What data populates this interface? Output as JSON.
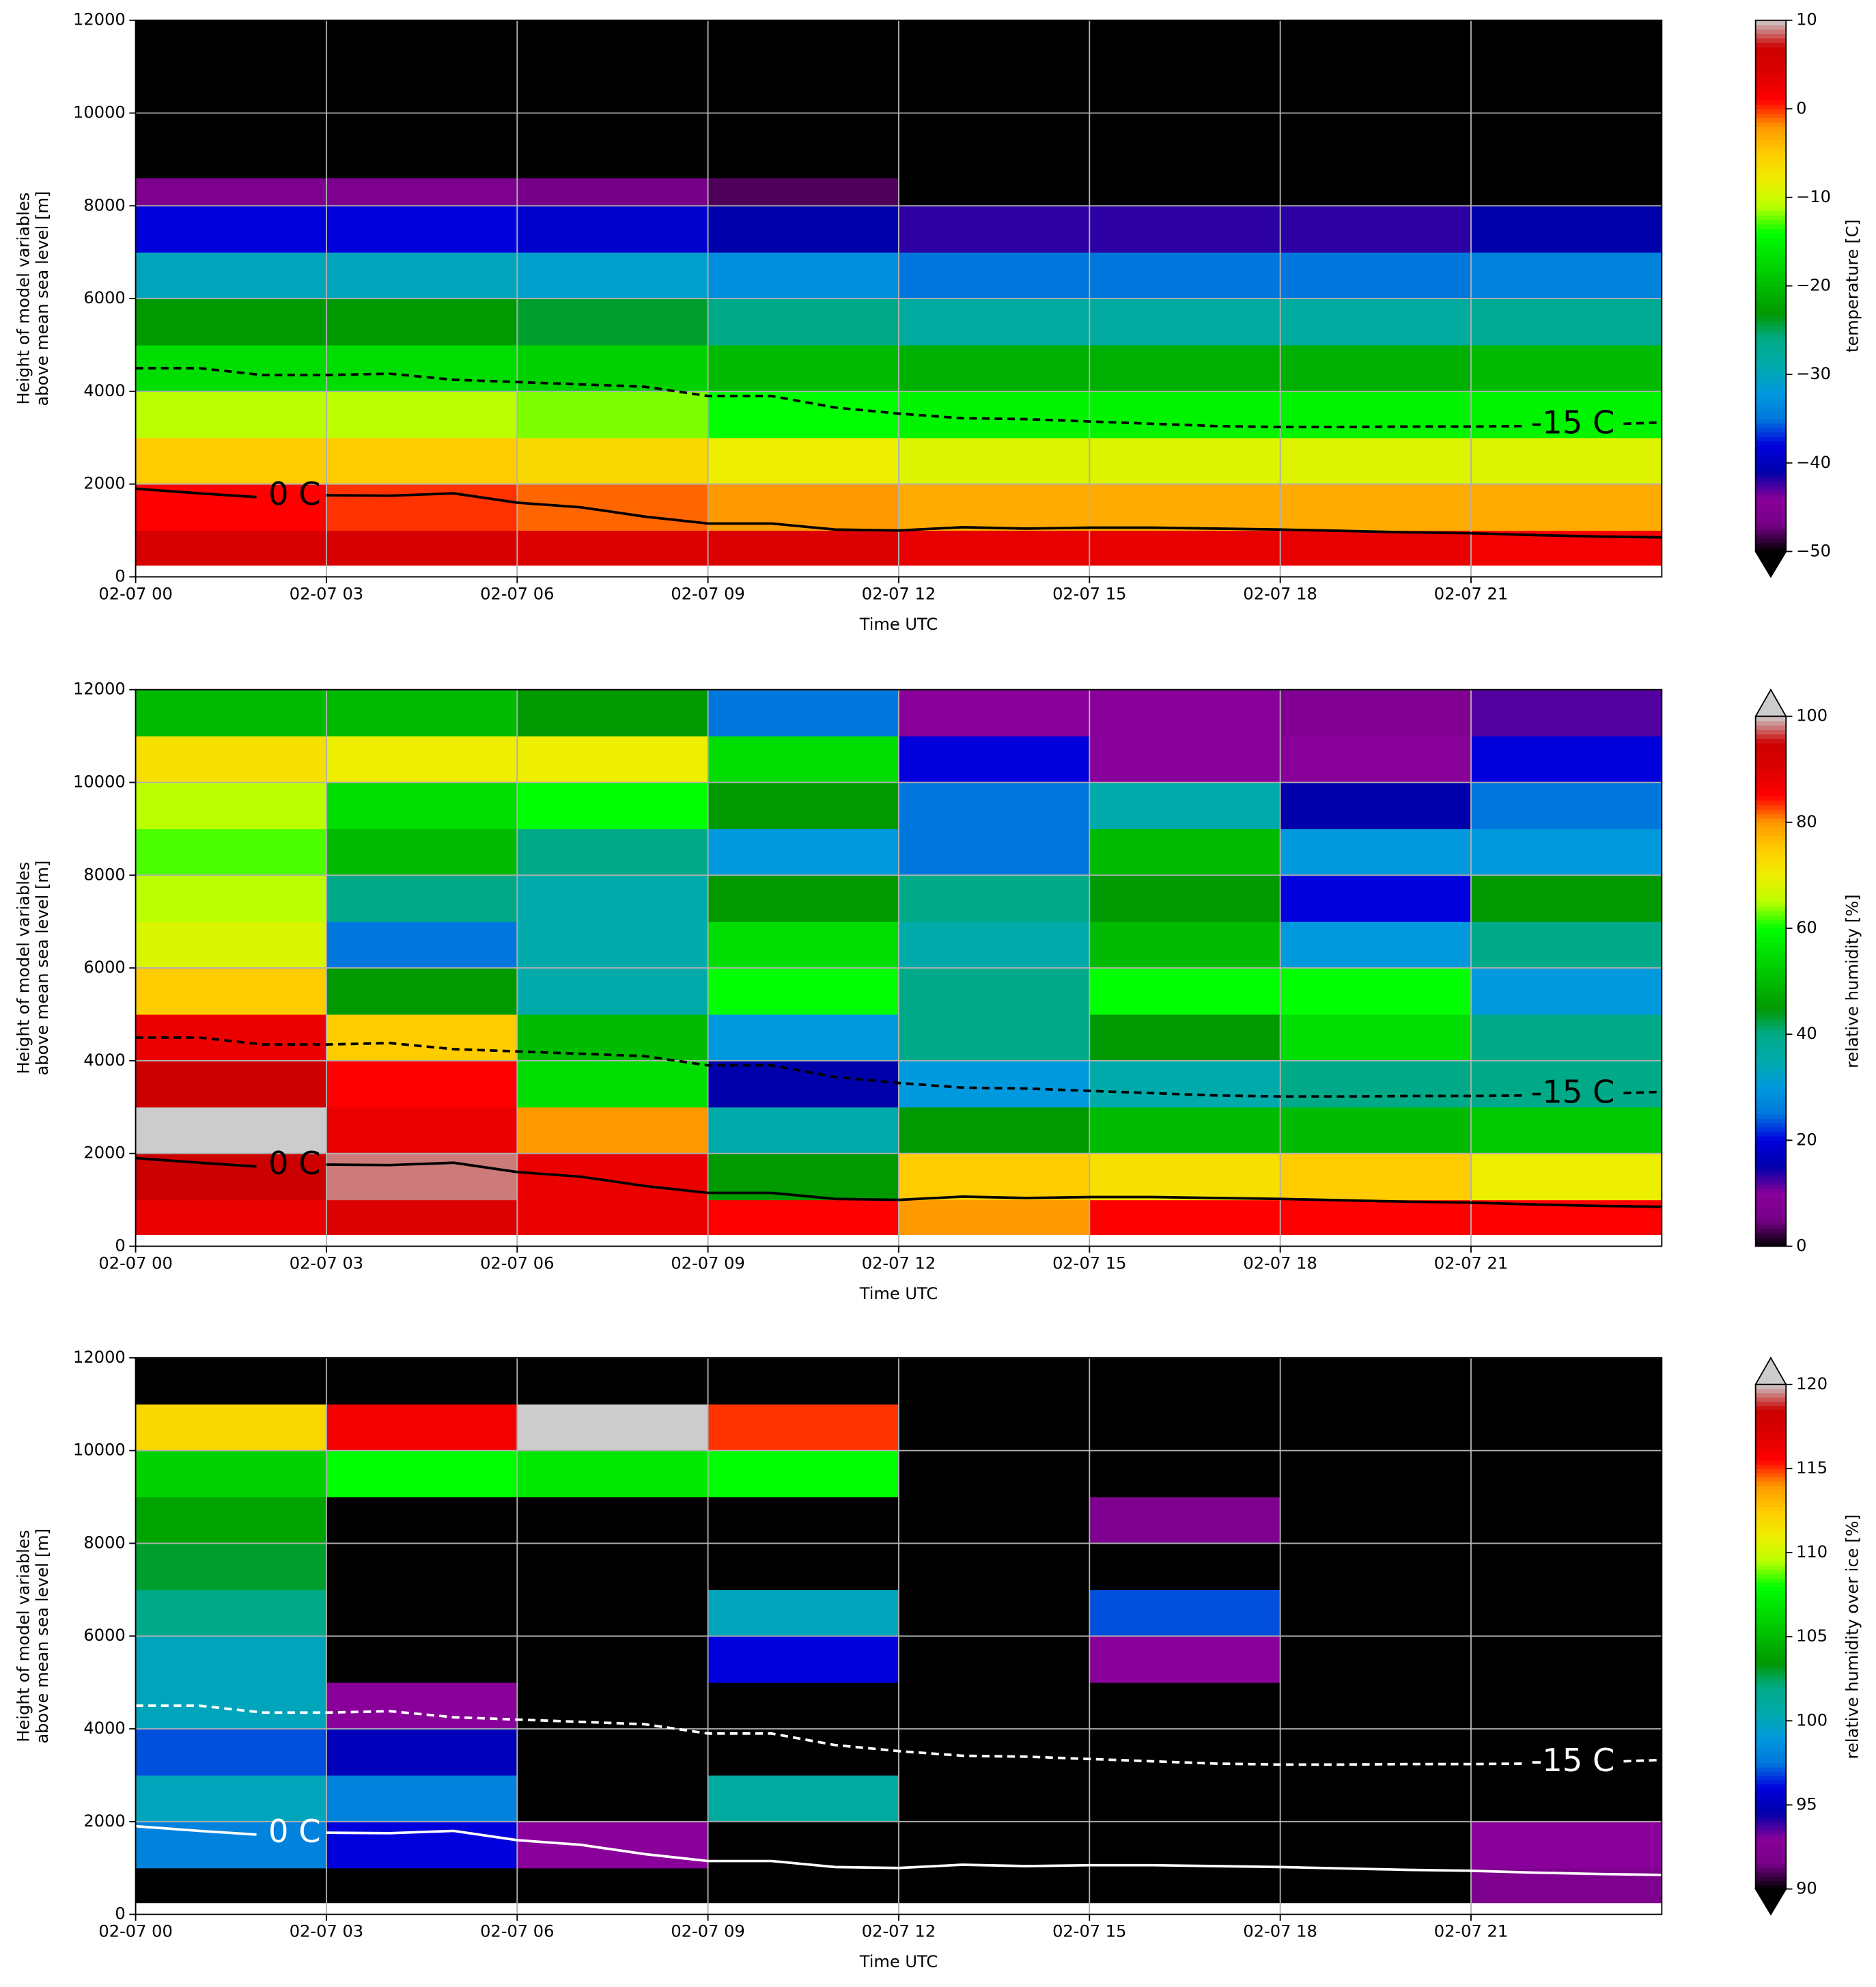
{
  "chart_data": [
    {
      "type": "heatmap",
      "xlabel": "Time UTC",
      "ylabel": [
        "Height of model variables",
        "above mean sea level [m]"
      ],
      "xlim": [
        0,
        24
      ],
      "xticks": [
        {
          "value": 0,
          "label": "02-07 00"
        },
        {
          "value": 3,
          "label": "02-07 03"
        },
        {
          "value": 6,
          "label": "02-07 06"
        },
        {
          "value": 9,
          "label": "02-07 09"
        },
        {
          "value": 12,
          "label": "02-07 12"
        },
        {
          "value": 15,
          "label": "02-07 15"
        },
        {
          "value": 18,
          "label": "02-07 18"
        },
        {
          "value": 21,
          "label": "02-07 21"
        }
      ],
      "ylim": [
        0,
        12000
      ],
      "yticks": [
        0,
        2000,
        4000,
        6000,
        8000,
        10000,
        12000
      ],
      "grid": true,
      "x_edges": [
        0,
        3,
        6,
        9,
        12,
        15,
        18,
        21,
        24
      ],
      "y_edges": [
        250,
        1000,
        2000,
        3000,
        4000,
        5000,
        6000,
        7000,
        8000,
        8600,
        12000
      ],
      "values": [
        [
          5,
          5,
          4,
          4,
          3,
          3,
          3,
          2
        ],
        [
          1,
          0,
          -1,
          -2,
          -3,
          -3,
          -3,
          -3
        ],
        [
          -5,
          -5,
          -6,
          -8,
          -9,
          -9,
          -9,
          -9
        ],
        [
          -11,
          -11,
          -12,
          -14,
          -15,
          -15,
          -15,
          -15
        ],
        [
          -17,
          -17,
          -18,
          -20,
          -21,
          -21,
          -21,
          -20
        ],
        [
          -23,
          -23,
          -24,
          -26,
          -28,
          -28,
          -28,
          -27
        ],
        [
          -30,
          -30,
          -31,
          -33,
          -35,
          -35,
          -35,
          -34
        ],
        [
          -38,
          -38,
          -39,
          -41,
          -42,
          -42,
          -42,
          -41
        ],
        [
          -46,
          -46,
          -47,
          -48,
          -50,
          -51,
          -51,
          -50
        ],
        [
          -56,
          -56,
          -56,
          -56,
          -56,
          -56,
          -56,
          -56
        ]
      ],
      "colormap": [
        "#000000",
        "#770088",
        "#880099",
        "#0000aa",
        "#0000dd",
        "#0077dd",
        "#0099dd",
        "#00aaaa",
        "#00aa88",
        "#009900",
        "#00bb00",
        "#00dd00",
        "#00ff00",
        "#bbff00",
        "#eeee00",
        "#ffcc00",
        "#ff9900",
        "#ff0000",
        "#dd0000",
        "#cc0000",
        "#cccccc"
      ],
      "under_color": "#000000",
      "colorbar": {
        "label": "temperature [C]",
        "clim": [
          -50,
          10
        ],
        "extend": "min",
        "ticks": [
          {
            "value": -50,
            "label": "−50"
          },
          {
            "value": -40,
            "label": "−40"
          },
          {
            "value": -30,
            "label": "−30"
          },
          {
            "value": -20,
            "label": "−20"
          },
          {
            "value": -10,
            "label": "−10"
          },
          0,
          10
        ]
      },
      "contours": [
        {
          "label": "0 C",
          "color": "#000000",
          "linestyle": "solid",
          "x": [
            0,
            1,
            1.9,
            2.5,
            3,
            4,
            5,
            6,
            7,
            8,
            9,
            10,
            11,
            12,
            13,
            14,
            15,
            16,
            17,
            18,
            19,
            20,
            21,
            22,
            23,
            24
          ],
          "y": [
            1900,
            1800,
            1720,
            null,
            1760,
            1750,
            1800,
            1600,
            1500,
            1300,
            1150,
            1150,
            1020,
            1000,
            1070,
            1040,
            1060,
            1060,
            1040,
            1020,
            990,
            960,
            940,
            900,
            870,
            850
          ]
        },
        {
          "label": "-15 C",
          "color": "#000000",
          "linestyle": "dashed",
          "x": [
            0,
            1,
            2,
            3,
            4,
            5,
            6,
            7,
            8,
            9,
            10,
            11,
            12,
            13,
            14,
            15,
            16,
            17,
            18,
            19,
            20,
            21,
            21.8,
            22.6,
            23.4,
            24
          ],
          "y": [
            4500,
            4500,
            4350,
            4350,
            4380,
            4250,
            4200,
            4150,
            4100,
            3900,
            3900,
            3650,
            3520,
            3420,
            3400,
            3350,
            3300,
            3250,
            3230,
            3230,
            3240,
            3240,
            3250,
            null,
            3300,
            3330
          ]
        }
      ]
    },
    {
      "type": "heatmap",
      "xlabel": "Time UTC",
      "ylabel": [
        "Height of model variables",
        "above mean sea level [m]"
      ],
      "xlim": [
        0,
        24
      ],
      "xticks": [
        {
          "value": 0,
          "label": "02-07 00"
        },
        {
          "value": 3,
          "label": "02-07 03"
        },
        {
          "value": 6,
          "label": "02-07 06"
        },
        {
          "value": 9,
          "label": "02-07 09"
        },
        {
          "value": 12,
          "label": "02-07 12"
        },
        {
          "value": 15,
          "label": "02-07 15"
        },
        {
          "value": 18,
          "label": "02-07 18"
        },
        {
          "value": 21,
          "label": "02-07 21"
        }
      ],
      "ylim": [
        0,
        12000
      ],
      "yticks": [
        0,
        2000,
        4000,
        6000,
        8000,
        10000,
        12000
      ],
      "grid": true,
      "x_edges": [
        0,
        3,
        6,
        9,
        12,
        15,
        18,
        21,
        24
      ],
      "y_edges": [
        250,
        1000,
        2000,
        3000,
        4000,
        5000,
        6000,
        7000,
        8000,
        9000,
        10000,
        11000,
        12000
      ],
      "values": [
        [
          88,
          90,
          88,
          85,
          80,
          85,
          85,
          85
        ],
        [
          95,
          98,
          88,
          45,
          75,
          72,
          75,
          70
        ],
        [
          102,
          88,
          80,
          35,
          45,
          50,
          50,
          52
        ],
        [
          95,
          85,
          55,
          15,
          30,
          35,
          40,
          40
        ],
        [
          88,
          75,
          50,
          30,
          40,
          45,
          55,
          40
        ],
        [
          75,
          45,
          35,
          60,
          40,
          60,
          60,
          30
        ],
        [
          68,
          25,
          35,
          55,
          35,
          50,
          30,
          40
        ],
        [
          65,
          40,
          35,
          45,
          40,
          45,
          20,
          45
        ],
        [
          62,
          50,
          40,
          30,
          25,
          50,
          30,
          30
        ],
        [
          65,
          55,
          60,
          45,
          25,
          35,
          15,
          25
        ],
        [
          72,
          70,
          70,
          55,
          20,
          10,
          10,
          20
        ],
        [
          50,
          50,
          45,
          25,
          10,
          10,
          8,
          12
        ]
      ],
      "colormap": [
        "#000000",
        "#770088",
        "#880099",
        "#0000aa",
        "#0000dd",
        "#0077dd",
        "#0099dd",
        "#00aaaa",
        "#00aa88",
        "#009900",
        "#00bb00",
        "#00dd00",
        "#00ff00",
        "#bbff00",
        "#eeee00",
        "#ffcc00",
        "#ff9900",
        "#ff0000",
        "#dd0000",
        "#cc0000",
        "#cccccc"
      ],
      "over_color": "#cccccc",
      "colorbar": {
        "label": "relative humidity [%]",
        "clim": [
          0,
          100
        ],
        "extend": "max",
        "ticks": [
          0,
          20,
          40,
          60,
          80,
          100
        ]
      },
      "contours": [
        {
          "label": "0 C",
          "color": "#000000",
          "linestyle": "solid",
          "x": [
            0,
            1,
            1.9,
            2.5,
            3,
            4,
            5,
            6,
            7,
            8,
            9,
            10,
            11,
            12,
            13,
            14,
            15,
            16,
            17,
            18,
            19,
            20,
            21,
            22,
            23,
            24
          ],
          "y": [
            1900,
            1800,
            1720,
            null,
            1760,
            1750,
            1800,
            1600,
            1500,
            1300,
            1150,
            1150,
            1020,
            1000,
            1070,
            1040,
            1060,
            1060,
            1040,
            1020,
            990,
            960,
            940,
            900,
            870,
            850
          ]
        },
        {
          "label": "-15 C",
          "color": "#000000",
          "linestyle": "dashed",
          "x": [
            0,
            1,
            2,
            3,
            4,
            5,
            6,
            7,
            8,
            9,
            10,
            11,
            12,
            13,
            14,
            15,
            16,
            17,
            18,
            19,
            20,
            21,
            21.8,
            22.6,
            23.4,
            24
          ],
          "y": [
            4500,
            4500,
            4350,
            4350,
            4380,
            4250,
            4200,
            4150,
            4100,
            3900,
            3900,
            3650,
            3520,
            3420,
            3400,
            3350,
            3300,
            3250,
            3230,
            3230,
            3240,
            3240,
            3250,
            null,
            3300,
            3330
          ]
        }
      ]
    },
    {
      "type": "heatmap",
      "xlabel": "Time UTC",
      "ylabel": [
        "Height of model variables",
        "above mean sea level [m]"
      ],
      "xlim": [
        0,
        24
      ],
      "xticks": [
        {
          "value": 0,
          "label": "02-07 00"
        },
        {
          "value": 3,
          "label": "02-07 03"
        },
        {
          "value": 6,
          "label": "02-07 06"
        },
        {
          "value": 9,
          "label": "02-07 09"
        },
        {
          "value": 12,
          "label": "02-07 12"
        },
        {
          "value": 15,
          "label": "02-07 15"
        },
        {
          "value": 18,
          "label": "02-07 18"
        },
        {
          "value": 21,
          "label": "02-07 21"
        }
      ],
      "ylim": [
        0,
        12000
      ],
      "yticks": [
        0,
        2000,
        4000,
        6000,
        8000,
        10000,
        12000
      ],
      "grid": true,
      "x_edges": [
        0,
        3,
        6,
        9,
        12,
        15,
        18,
        21,
        24
      ],
      "y_edges": [
        250,
        1000,
        2000,
        3000,
        4000,
        5000,
        6000,
        7000,
        8000,
        9000,
        10000,
        11000,
        12000
      ],
      "values": [
        [
          85,
          85,
          85,
          85,
          85,
          85,
          85,
          92
        ],
        [
          98,
          96,
          93,
          85,
          86,
          85,
          85,
          93
        ],
        [
          100,
          98,
          85,
          101,
          85,
          85,
          85,
          85
        ],
        [
          97,
          95,
          85,
          85,
          85,
          85,
          85,
          85
        ],
        [
          100,
          93,
          85,
          85,
          85,
          85,
          85,
          85
        ],
        [
          100,
          85,
          85,
          96,
          85,
          93,
          85,
          85
        ],
        [
          102,
          85,
          85,
          100,
          85,
          97,
          85,
          85
        ],
        [
          103,
          85,
          85,
          85,
          85,
          85,
          85,
          85
        ],
        [
          104,
          85,
          85,
          85,
          85,
          92,
          85,
          85
        ],
        [
          106,
          108,
          107,
          108,
          85,
          85,
          85,
          85
        ],
        [
          112,
          116,
          121,
          115,
          85,
          85,
          85,
          85
        ],
        [
          85,
          85,
          85,
          85,
          85,
          85,
          85,
          85
        ]
      ],
      "colormap": [
        "#000000",
        "#770088",
        "#880099",
        "#0000aa",
        "#0000dd",
        "#0077dd",
        "#0099dd",
        "#00aaaa",
        "#00aa88",
        "#009900",
        "#00bb00",
        "#00dd00",
        "#00ff00",
        "#bbff00",
        "#eeee00",
        "#ffcc00",
        "#ff9900",
        "#ff0000",
        "#dd0000",
        "#cc0000",
        "#cccccc"
      ],
      "under_color": "#000000",
      "over_color": "#cccccc",
      "colorbar": {
        "label": "relative humidity over ice [%]",
        "clim": [
          90,
          120
        ],
        "extend": "both",
        "ticks": [
          90,
          95,
          100,
          105,
          110,
          115,
          120
        ]
      },
      "contours": [
        {
          "label": "0 C",
          "color": "#ffffff",
          "linestyle": "solid",
          "x": [
            0,
            1,
            1.9,
            2.5,
            3,
            4,
            5,
            6,
            7,
            8,
            9,
            10,
            11,
            12,
            13,
            14,
            15,
            16,
            17,
            18,
            19,
            20,
            21,
            22,
            23,
            24
          ],
          "y": [
            1900,
            1800,
            1720,
            null,
            1760,
            1750,
            1800,
            1600,
            1500,
            1300,
            1150,
            1150,
            1020,
            1000,
            1070,
            1040,
            1060,
            1060,
            1040,
            1020,
            990,
            960,
            940,
            900,
            870,
            850
          ]
        },
        {
          "label": "-15 C",
          "color": "#ffffff",
          "linestyle": "dashed",
          "x": [
            0,
            1,
            2,
            3,
            4,
            5,
            6,
            7,
            8,
            9,
            10,
            11,
            12,
            13,
            14,
            15,
            16,
            17,
            18,
            19,
            20,
            21,
            21.8,
            22.6,
            23.4,
            24
          ],
          "y": [
            4500,
            4500,
            4350,
            4350,
            4380,
            4250,
            4200,
            4150,
            4100,
            3900,
            3900,
            3650,
            3520,
            3420,
            3400,
            3350,
            3300,
            3250,
            3230,
            3230,
            3240,
            3240,
            3250,
            null,
            3300,
            3330
          ]
        }
      ]
    }
  ]
}
